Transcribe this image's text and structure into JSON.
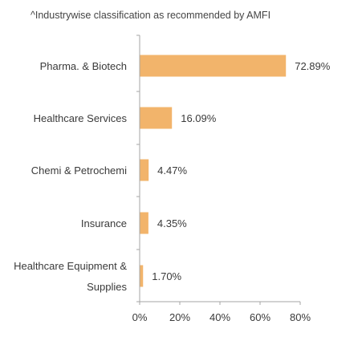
{
  "note": "^Industrywise classification as recommended by AMFI",
  "chart_data": {
    "type": "bar",
    "orientation": "horizontal",
    "categories": [
      [
        "Pharma. & Biotech"
      ],
      [
        "Healthcare Services"
      ],
      [
        "Chemi & Petrochemi"
      ],
      [
        "Insurance"
      ],
      [
        "Healthcare Equipment &",
        "Supplies"
      ]
    ],
    "values": [
      72.89,
      16.09,
      4.47,
      4.35,
      1.7
    ],
    "value_labels": [
      "72.89%",
      "16.09%",
      "4.47%",
      "4.35%",
      "1.70%"
    ],
    "xticks": [
      "0%",
      "20%",
      "40%",
      "60%",
      "80%"
    ],
    "xlim": [
      0,
      80
    ],
    "grid": false,
    "bar_color": "#f2b46b",
    "axis_color": "#a6a6a6"
  }
}
